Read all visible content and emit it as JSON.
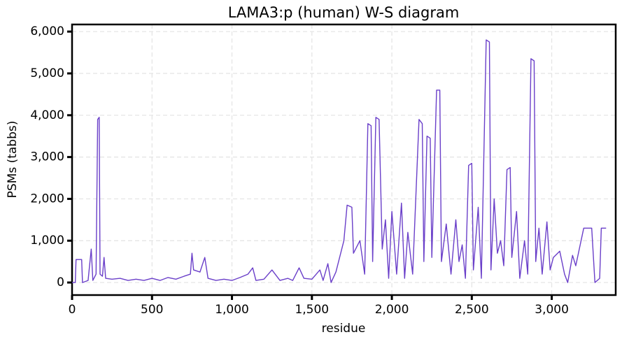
{
  "chart_data": {
    "type": "line",
    "title": "LAMA3:p (human) W-S diagram",
    "xlabel": "residue",
    "ylabel": "PSMs (tabbs)",
    "xlim": [
      0,
      3400
    ],
    "ylim": [
      -300,
      6170
    ],
    "xticks": [
      0,
      500,
      {
        "value": 1000,
        "label": "1,000"
      },
      {
        "value": 1500,
        "label": "1,500"
      },
      {
        "value": 2000,
        "label": "2,000"
      },
      {
        "value": 2500,
        "label": "2,500"
      },
      {
        "value": 3000,
        "label": "3,000"
      }
    ],
    "yticks": [
      0,
      {
        "value": 1000,
        "label": "1,000"
      },
      {
        "value": 2000,
        "label": "2,000"
      },
      {
        "value": 3000,
        "label": "3,000"
      },
      {
        "value": 4000,
        "label": "4,000"
      },
      {
        "value": 5000,
        "label": "5,000"
      },
      {
        "value": 6000,
        "label": "6,000"
      }
    ],
    "grid": true,
    "series": [
      {
        "name": "PSMs",
        "color": "#6a3fc9",
        "x": [
          0,
          20,
          25,
          60,
          65,
          100,
          120,
          130,
          150,
          160,
          170,
          175,
          190,
          200,
          210,
          250,
          300,
          350,
          400,
          450,
          500,
          550,
          600,
          650,
          700,
          740,
          750,
          760,
          800,
          830,
          850,
          900,
          950,
          1000,
          1050,
          1100,
          1130,
          1150,
          1200,
          1250,
          1300,
          1350,
          1380,
          1420,
          1450,
          1500,
          1550,
          1570,
          1600,
          1620,
          1650,
          1700,
          1720,
          1750,
          1760,
          1800,
          1830,
          1850,
          1870,
          1880,
          1900,
          1920,
          1940,
          1960,
          1980,
          2000,
          2030,
          2060,
          2080,
          2100,
          2130,
          2170,
          2190,
          2200,
          2220,
          2240,
          2250,
          2280,
          2300,
          2310,
          2340,
          2370,
          2400,
          2420,
          2440,
          2460,
          2480,
          2500,
          2510,
          2540,
          2560,
          2590,
          2610,
          2620,
          2640,
          2660,
          2680,
          2700,
          2720,
          2740,
          2750,
          2780,
          2800,
          2830,
          2850,
          2870,
          2890,
          2900,
          2920,
          2940,
          2970,
          2990,
          3010,
          3050,
          3080,
          3100,
          3130,
          3150,
          3200,
          3250,
          3270,
          3300,
          3310,
          3340
        ],
        "values": [
          0,
          0,
          550,
          550,
          0,
          50,
          800,
          50,
          200,
          3900,
          3950,
          200,
          150,
          600,
          100,
          80,
          100,
          50,
          80,
          50,
          100,
          50,
          120,
          80,
          150,
          200,
          700,
          300,
          250,
          600,
          100,
          50,
          80,
          50,
          120,
          200,
          350,
          50,
          80,
          300,
          50,
          100,
          50,
          350,
          100,
          80,
          300,
          50,
          450,
          0,
          250,
          1000,
          1850,
          1800,
          700,
          1000,
          200,
          3800,
          3750,
          500,
          3950,
          3900,
          800,
          1500,
          100,
          1700,
          200,
          1900,
          100,
          1200,
          200,
          3900,
          3800,
          500,
          3500,
          3450,
          600,
          4600,
          4600,
          500,
          1400,
          200,
          1500,
          500,
          900,
          100,
          2800,
          2850,
          300,
          1800,
          100,
          5800,
          5750,
          300,
          2000,
          700,
          1000,
          400,
          2700,
          2750,
          600,
          1700,
          100,
          1000,
          200,
          5350,
          5300,
          500,
          1300,
          200,
          1450,
          300,
          600,
          750,
          200,
          0,
          650,
          400,
          1300,
          1300,
          0,
          100,
          1300,
          1300
        ]
      }
    ]
  }
}
